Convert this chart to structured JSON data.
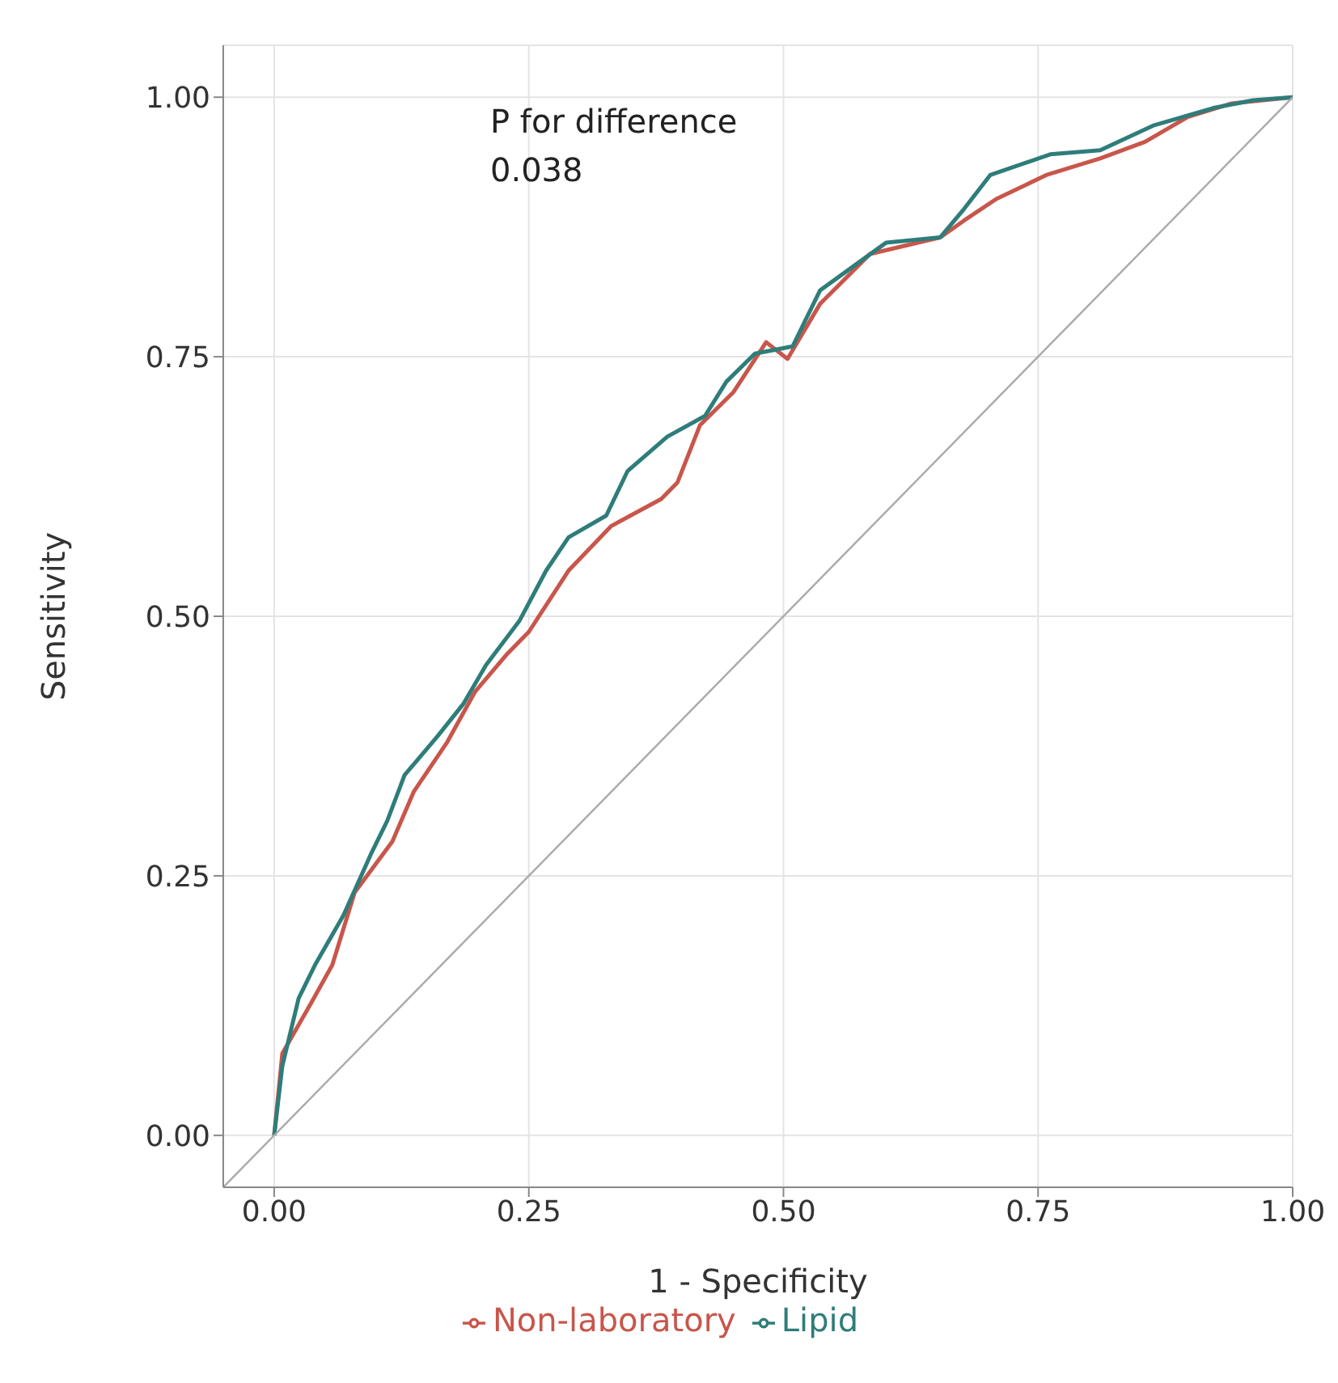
{
  "chart_data": {
    "type": "line",
    "xlabel": "1 - Specificity",
    "ylabel": "Sensitivity",
    "annotations": [
      "P for difference",
      "0.038"
    ],
    "xlim": [
      -0.05,
      1.0
    ],
    "ylim": [
      -0.05,
      1.05
    ],
    "xticks": [
      {
        "value": 0,
        "label": "0.00"
      },
      {
        "value": 0.25,
        "label": "0.25"
      },
      {
        "value": 0.5,
        "label": "0.50"
      },
      {
        "value": 0.75,
        "label": "0.75"
      },
      {
        "value": 1,
        "label": "1.00"
      }
    ],
    "yticks": [
      {
        "value": 0,
        "label": "0.00"
      },
      {
        "value": 0.25,
        "label": "0.25"
      },
      {
        "value": 0.5,
        "label": "0.50"
      },
      {
        "value": 0.75,
        "label": "0.75"
      },
      {
        "value": 1,
        "label": "1.00"
      }
    ],
    "grid": true,
    "legend": "bottom",
    "marker": "none",
    "line_style": "solid",
    "series": [
      {
        "name": "Non-laboratory",
        "color": "#c8564b",
        "x": [
          0,
          0.008,
          0.036,
          0.057,
          0.079,
          0.116,
          0.137,
          0.17,
          0.197,
          0.229,
          0.25,
          0.289,
          0.331,
          0.38,
          0.396,
          0.418,
          0.451,
          0.483,
          0.504,
          0.536,
          0.585,
          0.654,
          0.677,
          0.709,
          0.758,
          0.811,
          0.855,
          0.897,
          0.94,
          1
        ],
        "values": [
          0,
          0.079,
          0.127,
          0.164,
          0.234,
          0.283,
          0.331,
          0.379,
          0.427,
          0.464,
          0.485,
          0.544,
          0.587,
          0.613,
          0.629,
          0.684,
          0.716,
          0.764,
          0.748,
          0.801,
          0.849,
          0.865,
          0.881,
          0.902,
          0.925,
          0.941,
          0.957,
          0.981,
          0.994,
          1
        ]
      },
      {
        "name": "Lipid",
        "color": "#2e7d7a",
        "x": [
          0,
          0.008,
          0.024,
          0.04,
          0.068,
          0.095,
          0.111,
          0.128,
          0.16,
          0.186,
          0.208,
          0.241,
          0.267,
          0.289,
          0.326,
          0.347,
          0.386,
          0.423,
          0.444,
          0.472,
          0.509,
          0.536,
          0.601,
          0.654,
          0.677,
          0.703,
          0.762,
          0.811,
          0.864,
          0.924,
          0.961,
          1
        ],
        "values": [
          0,
          0.067,
          0.132,
          0.164,
          0.212,
          0.271,
          0.303,
          0.347,
          0.384,
          0.416,
          0.453,
          0.496,
          0.544,
          0.576,
          0.597,
          0.64,
          0.673,
          0.693,
          0.726,
          0.753,
          0.76,
          0.814,
          0.86,
          0.865,
          0.892,
          0.925,
          0.945,
          0.949,
          0.973,
          0.99,
          0.997,
          1
        ]
      },
      {
        "color": "#aaaaaa",
        "x": [
          -0.05,
          1
        ],
        "values": [
          -0.05,
          1
        ]
      }
    ]
  }
}
